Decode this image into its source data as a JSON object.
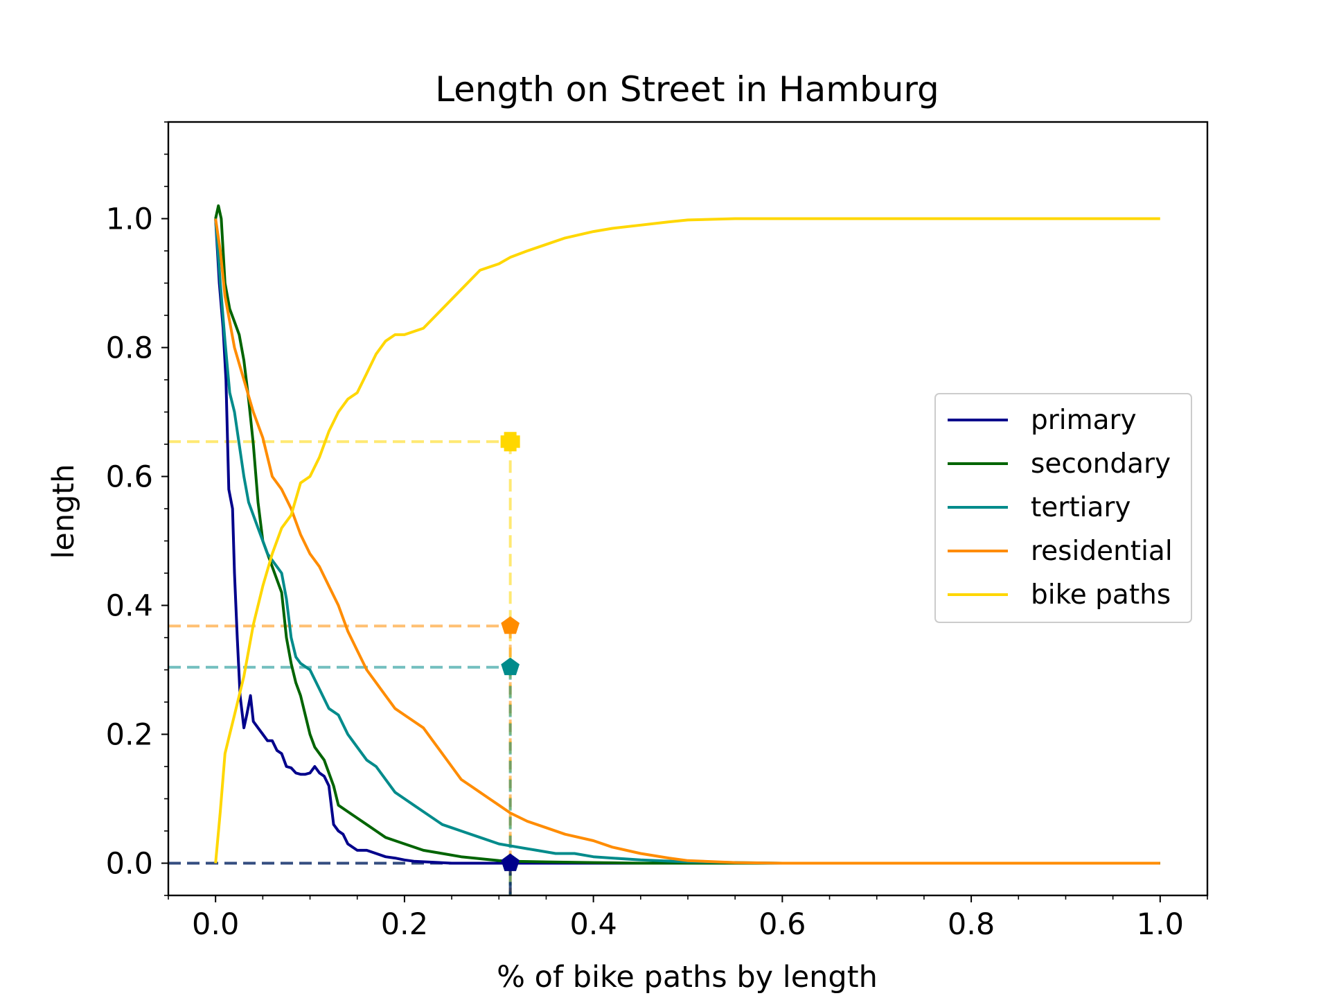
{
  "chart_data": {
    "type": "line",
    "title": "Length on Street in Hamburg",
    "xlabel": "% of bike paths by length",
    "ylabel": "length",
    "xlim": [
      -0.05,
      1.05
    ],
    "ylim": [
      -0.05,
      1.15
    ],
    "xticks": [
      0.0,
      0.2,
      0.4,
      0.6,
      0.8,
      1.0
    ],
    "xtick_labels": [
      "0.0",
      "0.2",
      "0.4",
      "0.6",
      "0.8",
      "1.0"
    ],
    "yticks": [
      0.0,
      0.2,
      0.4,
      0.6,
      0.8,
      1.0
    ],
    "ytick_labels": [
      "0.0",
      "0.2",
      "0.4",
      "0.6",
      "0.8",
      "1.0"
    ],
    "grid": false,
    "legend_position": "center-right",
    "series": [
      {
        "name": "primary",
        "color": "#00008b",
        "x": [
          0.0,
          0.004,
          0.008,
          0.011,
          0.014,
          0.018,
          0.02,
          0.023,
          0.026,
          0.03,
          0.033,
          0.037,
          0.04,
          0.045,
          0.05,
          0.055,
          0.06,
          0.065,
          0.07,
          0.075,
          0.08,
          0.085,
          0.09,
          0.095,
          0.1,
          0.105,
          0.11,
          0.115,
          0.12,
          0.125,
          0.13,
          0.135,
          0.14,
          0.15,
          0.16,
          0.17,
          0.18,
          0.19,
          0.2,
          0.21,
          0.25,
          0.3,
          0.35,
          0.4,
          0.5,
          0.6,
          0.8,
          1.0
        ],
        "y": [
          1.0,
          0.9,
          0.83,
          0.75,
          0.58,
          0.55,
          0.45,
          0.35,
          0.26,
          0.21,
          0.23,
          0.26,
          0.22,
          0.21,
          0.2,
          0.19,
          0.19,
          0.175,
          0.17,
          0.15,
          0.148,
          0.14,
          0.138,
          0.138,
          0.14,
          0.15,
          0.14,
          0.135,
          0.12,
          0.06,
          0.05,
          0.045,
          0.03,
          0.02,
          0.02,
          0.015,
          0.01,
          0.008,
          0.005,
          0.003,
          0.0,
          0.0,
          0.0,
          0.0,
          0.0,
          0.0,
          0.0,
          0.0
        ]
      },
      {
        "name": "secondary",
        "color": "#006400",
        "x": [
          0.0,
          0.003,
          0.006,
          0.01,
          0.015,
          0.02,
          0.025,
          0.03,
          0.035,
          0.04,
          0.045,
          0.05,
          0.055,
          0.06,
          0.065,
          0.07,
          0.075,
          0.08,
          0.085,
          0.09,
          0.095,
          0.1,
          0.105,
          0.11,
          0.115,
          0.12,
          0.125,
          0.13,
          0.14,
          0.15,
          0.16,
          0.17,
          0.18,
          0.19,
          0.2,
          0.22,
          0.24,
          0.26,
          0.28,
          0.3,
          0.312,
          0.35,
          0.4,
          0.45,
          0.5,
          0.6,
          0.8,
          1.0
        ],
        "y": [
          1.0,
          1.02,
          1.0,
          0.9,
          0.86,
          0.84,
          0.82,
          0.78,
          0.72,
          0.65,
          0.56,
          0.5,
          0.48,
          0.46,
          0.44,
          0.42,
          0.35,
          0.31,
          0.28,
          0.26,
          0.23,
          0.2,
          0.18,
          0.17,
          0.16,
          0.14,
          0.12,
          0.09,
          0.08,
          0.07,
          0.06,
          0.05,
          0.04,
          0.035,
          0.03,
          0.02,
          0.015,
          0.01,
          0.007,
          0.004,
          0.003,
          0.002,
          0.001,
          0.0,
          0.0,
          0.0,
          0.0,
          0.0
        ]
      },
      {
        "name": "tertiary",
        "color": "#008b8b",
        "x": [
          0.0,
          0.005,
          0.01,
          0.015,
          0.02,
          0.025,
          0.03,
          0.035,
          0.04,
          0.045,
          0.05,
          0.055,
          0.06,
          0.065,
          0.07,
          0.075,
          0.08,
          0.085,
          0.09,
          0.1,
          0.11,
          0.12,
          0.13,
          0.14,
          0.15,
          0.16,
          0.17,
          0.18,
          0.19,
          0.2,
          0.21,
          0.22,
          0.23,
          0.24,
          0.25,
          0.26,
          0.28,
          0.3,
          0.32,
          0.34,
          0.36,
          0.38,
          0.4,
          0.42,
          0.45,
          0.5,
          0.6,
          0.8,
          1.0
        ],
        "y": [
          1.0,
          0.9,
          0.81,
          0.73,
          0.7,
          0.65,
          0.6,
          0.56,
          0.54,
          0.52,
          0.5,
          0.48,
          0.47,
          0.46,
          0.45,
          0.41,
          0.35,
          0.32,
          0.31,
          0.3,
          0.27,
          0.24,
          0.23,
          0.2,
          0.18,
          0.16,
          0.15,
          0.13,
          0.11,
          0.1,
          0.09,
          0.08,
          0.07,
          0.06,
          0.055,
          0.05,
          0.04,
          0.03,
          0.025,
          0.02,
          0.015,
          0.015,
          0.01,
          0.008,
          0.005,
          0.002,
          0.0,
          0.0,
          0.0
        ]
      },
      {
        "name": "residential",
        "color": "#ff8c00",
        "x": [
          0.0,
          0.005,
          0.01,
          0.02,
          0.03,
          0.04,
          0.05,
          0.06,
          0.07,
          0.08,
          0.09,
          0.1,
          0.11,
          0.12,
          0.13,
          0.14,
          0.15,
          0.16,
          0.17,
          0.18,
          0.19,
          0.2,
          0.21,
          0.22,
          0.23,
          0.24,
          0.25,
          0.26,
          0.27,
          0.28,
          0.29,
          0.3,
          0.31,
          0.312,
          0.33,
          0.35,
          0.37,
          0.4,
          0.42,
          0.45,
          0.48,
          0.5,
          0.55,
          0.6,
          0.8,
          1.0
        ],
        "y": [
          1.0,
          0.95,
          0.88,
          0.8,
          0.75,
          0.7,
          0.66,
          0.6,
          0.58,
          0.55,
          0.51,
          0.48,
          0.46,
          0.43,
          0.4,
          0.36,
          0.33,
          0.3,
          0.28,
          0.26,
          0.24,
          0.23,
          0.22,
          0.21,
          0.19,
          0.17,
          0.15,
          0.13,
          0.12,
          0.11,
          0.1,
          0.09,
          0.08,
          0.078,
          0.065,
          0.055,
          0.045,
          0.035,
          0.025,
          0.015,
          0.008,
          0.004,
          0.001,
          0.0,
          0.0,
          0.0
        ]
      },
      {
        "name": "bike paths",
        "color": "#ffd700",
        "x": [
          0.0,
          0.005,
          0.01,
          0.015,
          0.02,
          0.025,
          0.03,
          0.035,
          0.04,
          0.05,
          0.06,
          0.07,
          0.08,
          0.09,
          0.1,
          0.11,
          0.12,
          0.13,
          0.14,
          0.15,
          0.16,
          0.17,
          0.18,
          0.19,
          0.2,
          0.22,
          0.24,
          0.26,
          0.28,
          0.3,
          0.312,
          0.33,
          0.35,
          0.37,
          0.4,
          0.42,
          0.45,
          0.48,
          0.5,
          0.55,
          0.6,
          0.7,
          0.8,
          1.0
        ],
        "y": [
          0.0,
          0.08,
          0.17,
          0.2,
          0.23,
          0.26,
          0.29,
          0.33,
          0.37,
          0.43,
          0.48,
          0.52,
          0.54,
          0.59,
          0.6,
          0.63,
          0.67,
          0.7,
          0.72,
          0.73,
          0.76,
          0.79,
          0.81,
          0.82,
          0.82,
          0.83,
          0.86,
          0.89,
          0.92,
          0.93,
          0.94,
          0.95,
          0.96,
          0.97,
          0.98,
          0.985,
          0.99,
          0.995,
          0.998,
          1.0,
          1.0,
          1.0,
          1.0,
          1.0
        ]
      }
    ],
    "reference_x": 0.312,
    "markers": [
      {
        "series": "bike paths",
        "y": 0.654,
        "shape": "plus",
        "color": "#ffd700"
      },
      {
        "series": "residential",
        "y": 0.368,
        "shape": "pentagon",
        "color": "#ff8c00"
      },
      {
        "series": "tertiary",
        "y": 0.304,
        "shape": "pentagon",
        "color": "#008b8b"
      },
      {
        "series": "secondary",
        "y": 0.0,
        "shape": "pentagon",
        "color": "#006400"
      },
      {
        "series": "primary",
        "y": 0.0,
        "shape": "pentagon",
        "color": "#00008b"
      }
    ]
  }
}
